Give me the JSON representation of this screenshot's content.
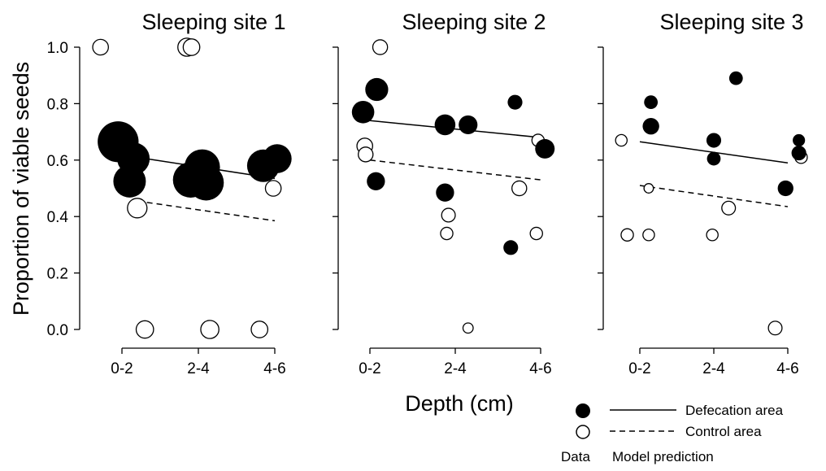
{
  "chart_data": {
    "type": "scatter",
    "ylabel": "Proportion of viable seeds",
    "xlabel": "Depth (cm)",
    "categories": [
      "0-2",
      "2-4",
      "4-6"
    ],
    "x_tick_labels": [
      "0-2",
      "2-4",
      "4-6"
    ],
    "y_tick_labels": [
      "0.0",
      "0.2",
      "0.4",
      "0.6",
      "0.8",
      "1.0"
    ],
    "ylim": [
      0,
      1
    ],
    "grid": false,
    "legend": {
      "position": "bottom-right",
      "entries": [
        {
          "name": "Defecation area",
          "marker": "filled circle",
          "line": "solid",
          "color": "#000000"
        },
        {
          "name": "Control area",
          "marker": "open circle",
          "line": "dashed",
          "color": "#000000"
        }
      ],
      "data_label": "Data",
      "model_label": "Model prediction"
    },
    "panels": [
      {
        "title": "Sleeping site 1",
        "defecation_points": [
          {
            "x": 0.95,
            "y": 0.665,
            "size": 7
          },
          {
            "x": 1.15,
            "y": 0.605,
            "size": 4
          },
          {
            "x": 1.1,
            "y": 0.525,
            "size": 4
          },
          {
            "x": 1.9,
            "y": 0.53,
            "size": 5
          },
          {
            "x": 2.05,
            "y": 0.575,
            "size": 5
          },
          {
            "x": 2.1,
            "y": 0.52,
            "size": 5
          },
          {
            "x": 2.85,
            "y": 0.58,
            "size": 4
          },
          {
            "x": 3.03,
            "y": 0.605,
            "size": 3
          }
        ],
        "control_points": [
          {
            "x": 0.72,
            "y": 1.0,
            "size": 0.5
          },
          {
            "x": 1.2,
            "y": 0.43,
            "size": 1
          },
          {
            "x": 1.3,
            "y": 0.0,
            "size": 0.7
          },
          {
            "x": 1.85,
            "y": 1.0,
            "size": 0.8
          },
          {
            "x": 1.91,
            "y": 1.0,
            "size": 0.6
          },
          {
            "x": 2.15,
            "y": 0.0,
            "size": 0.8
          },
          {
            "x": 2.8,
            "y": 0.0,
            "size": 0.6
          },
          {
            "x": 2.98,
            "y": 0.5,
            "size": 0.5
          }
        ],
        "defecation_model": {
          "x": [
            1.2,
            3.0
          ],
          "y": [
            0.61,
            0.535
          ]
        },
        "control_model": {
          "x": [
            1.2,
            3.0
          ],
          "y": [
            0.455,
            0.385
          ]
        }
      },
      {
        "title": "Sleeping site 2",
        "defecation_points": [
          {
            "x": 0.92,
            "y": 0.77,
            "size": 1.5
          },
          {
            "x": 1.08,
            "y": 0.85,
            "size": 1.6
          },
          {
            "x": 1.07,
            "y": 0.525,
            "size": 0.8
          },
          {
            "x": 1.88,
            "y": 0.725,
            "size": 1.2
          },
          {
            "x": 1.88,
            "y": 0.485,
            "size": 0.8
          },
          {
            "x": 2.15,
            "y": 0.725,
            "size": 0.9
          },
          {
            "x": 2.7,
            "y": 0.805,
            "size": 0.4
          },
          {
            "x": 3.05,
            "y": 0.64,
            "size": 1.0
          },
          {
            "x": 2.65,
            "y": 0.29,
            "size": 0.4
          }
        ],
        "control_points": [
          {
            "x": 0.94,
            "y": 0.65,
            "size": 0.5
          },
          {
            "x": 0.95,
            "y": 0.62,
            "size": 0.4
          },
          {
            "x": 1.12,
            "y": 1.0,
            "size": 0.4
          },
          {
            "x": 1.92,
            "y": 0.405,
            "size": 0.3
          },
          {
            "x": 1.9,
            "y": 0.34,
            "size": 0.2
          },
          {
            "x": 2.15,
            "y": 0.005,
            "size": 0.08
          },
          {
            "x": 2.75,
            "y": 0.5,
            "size": 0.4
          },
          {
            "x": 2.97,
            "y": 0.67,
            "size": 0.2
          },
          {
            "x": 2.95,
            "y": 0.34,
            "size": 0.2
          }
        ],
        "defecation_model": {
          "x": [
            1.0,
            3.0
          ],
          "y": [
            0.74,
            0.68
          ]
        },
        "control_model": {
          "x": [
            1.0,
            3.0
          ],
          "y": [
            0.6,
            0.53
          ]
        }
      },
      {
        "title": "Sleeping site 3",
        "defecation_points": [
          {
            "x": 1.15,
            "y": 0.72,
            "size": 0.6
          },
          {
            "x": 1.15,
            "y": 0.805,
            "size": 0.3
          },
          {
            "x": 2.0,
            "y": 0.67,
            "size": 0.4
          },
          {
            "x": 2.0,
            "y": 0.605,
            "size": 0.3
          },
          {
            "x": 2.3,
            "y": 0.89,
            "size": 0.3
          },
          {
            "x": 3.15,
            "y": 0.67,
            "size": 0.2
          },
          {
            "x": 3.15,
            "y": 0.625,
            "size": 0.4
          },
          {
            "x": 2.97,
            "y": 0.5,
            "size": 0.5
          }
        ],
        "control_points": [
          {
            "x": 0.75,
            "y": 0.67,
            "size": 0.15
          },
          {
            "x": 0.83,
            "y": 0.335,
            "size": 0.2
          },
          {
            "x": 1.12,
            "y": 0.335,
            "size": 0.15
          },
          {
            "x": 1.12,
            "y": 0.5,
            "size": 0.05
          },
          {
            "x": 1.98,
            "y": 0.335,
            "size": 0.15
          },
          {
            "x": 2.2,
            "y": 0.43,
            "size": 0.3
          },
          {
            "x": 2.83,
            "y": 0.005,
            "size": 0.3
          },
          {
            "x": 2.97,
            "y": 0.5,
            "size": 0.3
          },
          {
            "x": 3.18,
            "y": 0.61,
            "size": 0.2
          }
        ],
        "defecation_model": {
          "x": [
            1.0,
            3.0
          ],
          "y": [
            0.665,
            0.59
          ]
        },
        "control_model": {
          "x": [
            1.0,
            3.0
          ],
          "y": [
            0.51,
            0.435
          ]
        }
      }
    ]
  }
}
